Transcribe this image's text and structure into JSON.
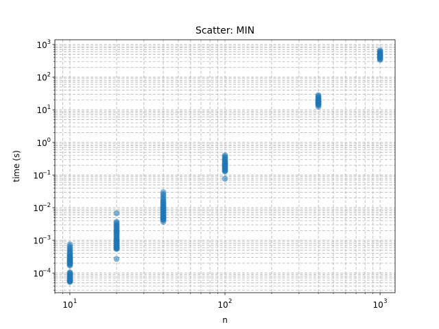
{
  "chart_data": {
    "type": "scatter",
    "title": "Scatter: MIN",
    "xlabel": "n",
    "ylabel": "time (s)",
    "x_scale": "log",
    "y_scale": "log",
    "xlim": [
      8,
      1250
    ],
    "ylim": [
      2.5e-05,
      1400
    ],
    "x_ticks": [
      {
        "base": "10",
        "exp": "1",
        "value": 10
      },
      {
        "base": "10",
        "exp": "2",
        "value": 100
      },
      {
        "base": "10",
        "exp": "3",
        "value": 1000
      }
    ],
    "y_ticks": [
      {
        "base": "10",
        "exp": "−4",
        "value": 0.0001
      },
      {
        "base": "10",
        "exp": "−3",
        "value": 0.001
      },
      {
        "base": "10",
        "exp": "−2",
        "value": 0.01
      },
      {
        "base": "10",
        "exp": "−1",
        "value": 0.1
      },
      {
        "base": "10",
        "exp": "0",
        "value": 1
      },
      {
        "base": "10",
        "exp": "1",
        "value": 10
      },
      {
        "base": "10",
        "exp": "2",
        "value": 100
      },
      {
        "base": "10",
        "exp": "3",
        "value": 1000
      }
    ],
    "grid": true,
    "grid_which": "both",
    "marker_color": "#1f77b4",
    "series": [
      {
        "x": [
          10,
          10,
          10,
          10,
          10,
          10,
          10,
          10,
          10,
          10,
          10,
          10,
          10,
          10,
          10,
          10,
          10,
          10,
          10,
          10,
          10,
          10,
          10,
          10,
          10,
          10,
          10,
          10,
          10,
          10,
          10,
          10,
          10,
          10,
          10,
          10,
          10,
          10,
          10,
          10
        ],
        "y": [
          0.00075,
          0.00065,
          0.00058,
          0.00052,
          0.00048,
          0.00044,
          0.0004,
          0.00037,
          0.00034,
          0.00031,
          0.00029,
          0.00027,
          0.00025,
          0.00023,
          0.00022,
          0.00021,
          0.0002,
          0.00019,
          0.00018,
          0.00017,
          0.000105,
          0.0001,
          9.5e-05,
          9e-05,
          8.5e-05,
          8e-05,
          7.6e-05,
          7.2e-05,
          6.8e-05,
          6.5e-05,
          6.2e-05,
          6e-05,
          5.8e-05,
          5.6e-05,
          5.5e-05,
          5.4e-05,
          0.0003,
          0.00026,
          0.00024,
          0.00035
        ]
      },
      {
        "x": [
          20,
          20,
          20,
          20,
          20,
          20,
          20,
          20,
          20,
          20,
          20,
          20,
          20,
          20,
          20,
          20,
          20,
          20,
          20,
          20,
          20,
          20,
          20,
          20,
          20,
          20,
          20,
          20,
          20,
          20,
          20,
          20,
          20
        ],
        "y": [
          0.0068,
          0.0037,
          0.0034,
          0.0031,
          0.0028,
          0.0026,
          0.0024,
          0.0022,
          0.002,
          0.0019,
          0.0018,
          0.0017,
          0.0016,
          0.0015,
          0.0014,
          0.0013,
          0.0012,
          0.0011,
          0.00105,
          0.001,
          0.00095,
          0.0009,
          0.00085,
          0.0008,
          0.00075,
          0.0007,
          0.00066,
          0.00063,
          0.0006,
          0.00058,
          0.00056,
          0.00055,
          0.00027
        ]
      },
      {
        "x": [
          40,
          40,
          40,
          40,
          40,
          40,
          40,
          40,
          40,
          40,
          40,
          40,
          40,
          40,
          40,
          40,
          40,
          40,
          40,
          40,
          40,
          40,
          40,
          40,
          40,
          40,
          40,
          40,
          40,
          40
        ],
        "y": [
          0.03,
          0.026,
          0.023,
          0.02,
          0.018,
          0.016,
          0.015,
          0.014,
          0.013,
          0.012,
          0.011,
          0.0105,
          0.01,
          0.0095,
          0.009,
          0.0085,
          0.008,
          0.0075,
          0.007,
          0.0066,
          0.0062,
          0.0058,
          0.0055,
          0.0052,
          0.005,
          0.0048,
          0.0046,
          0.0044,
          0.0042,
          0.0037
        ]
      },
      {
        "x": [
          100,
          100,
          100,
          100,
          100,
          100,
          100,
          100,
          100,
          100,
          100,
          100,
          100,
          100,
          100,
          100,
          100,
          100,
          100,
          100
        ],
        "y": [
          0.4,
          0.37,
          0.34,
          0.31,
          0.29,
          0.27,
          0.25,
          0.23,
          0.22,
          0.21,
          0.2,
          0.19,
          0.18,
          0.17,
          0.16,
          0.15,
          0.14,
          0.135,
          0.13,
          0.078
        ]
      },
      {
        "x": [
          400,
          400,
          400,
          400,
          400,
          400,
          400,
          400,
          400,
          400,
          400,
          400,
          400,
          400,
          400,
          400
        ],
        "y": [
          28,
          26,
          24,
          22.5,
          21,
          20,
          19,
          18,
          17.5,
          17,
          16.5,
          16,
          15,
          14.5,
          14,
          12.5
        ]
      },
      {
        "x": [
          1000,
          1000,
          1000,
          1000,
          1000,
          1000,
          1000,
          1000,
          1000,
          1000,
          1000,
          1000,
          1000,
          1000
        ],
        "y": [
          660,
          620,
          580,
          550,
          520,
          500,
          480,
          460,
          440,
          420,
          400,
          380,
          360,
          340
        ]
      }
    ]
  }
}
